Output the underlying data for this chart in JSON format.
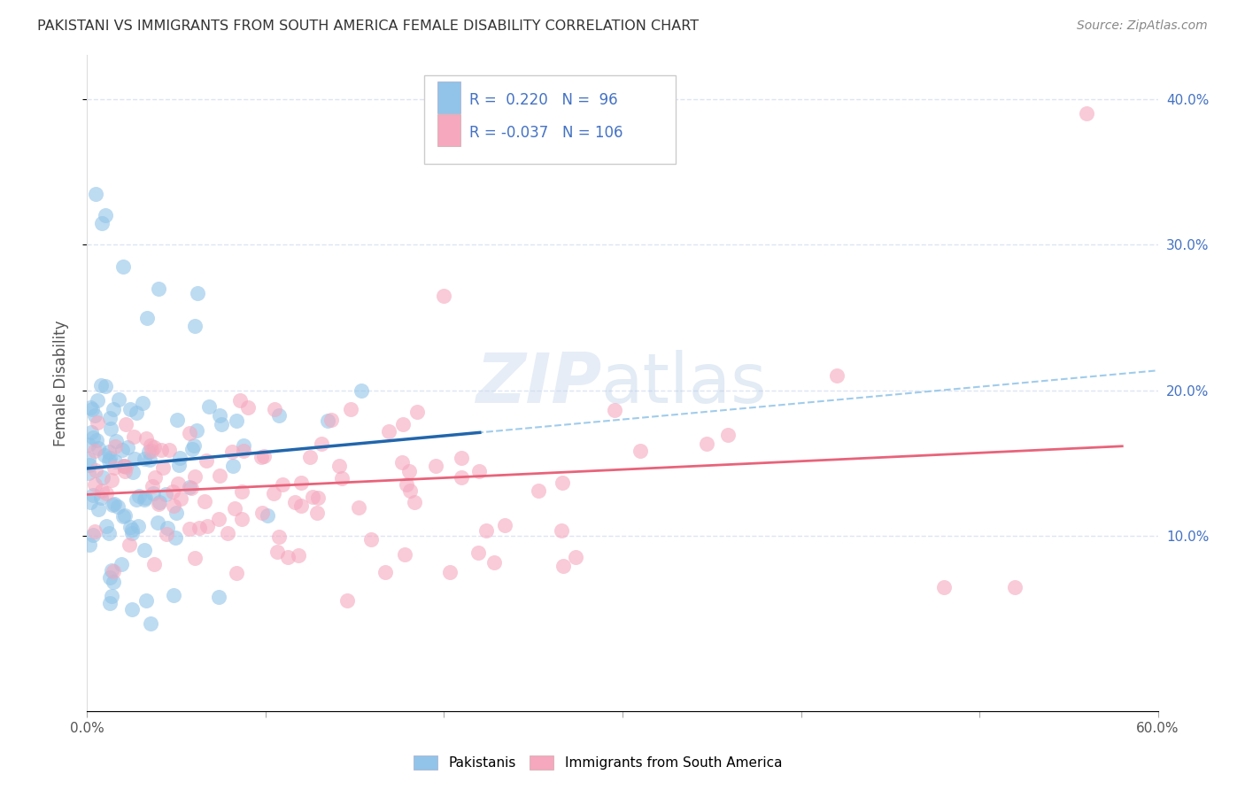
{
  "title": "PAKISTANI VS IMMIGRANTS FROM SOUTH AMERICA FEMALE DISABILITY CORRELATION CHART",
  "source": "Source: ZipAtlas.com",
  "ylabel": "Female Disability",
  "xlim": [
    0.0,
    0.6
  ],
  "ylim": [
    -0.02,
    0.43
  ],
  "ytick_values": [
    0.1,
    0.2,
    0.3,
    0.4
  ],
  "xtick_values": [
    0.0,
    0.1,
    0.2,
    0.3,
    0.4,
    0.5,
    0.6
  ],
  "blue_R": 0.22,
  "blue_N": 96,
  "pink_R": -0.037,
  "pink_N": 106,
  "blue_color": "#91c4e8",
  "pink_color": "#f5a8be",
  "blue_line_color": "#2166ac",
  "pink_line_color": "#e8637a",
  "dash_line_color": "#91c4e8",
  "grid_color": "#d5dff0",
  "background_color": "#ffffff",
  "watermark_zip": "ZIP",
  "watermark_atlas": "atlas",
  "axis_label_color": "#4472c4",
  "legend_labels": [
    "Pakistanis",
    "Immigrants from South America"
  ]
}
